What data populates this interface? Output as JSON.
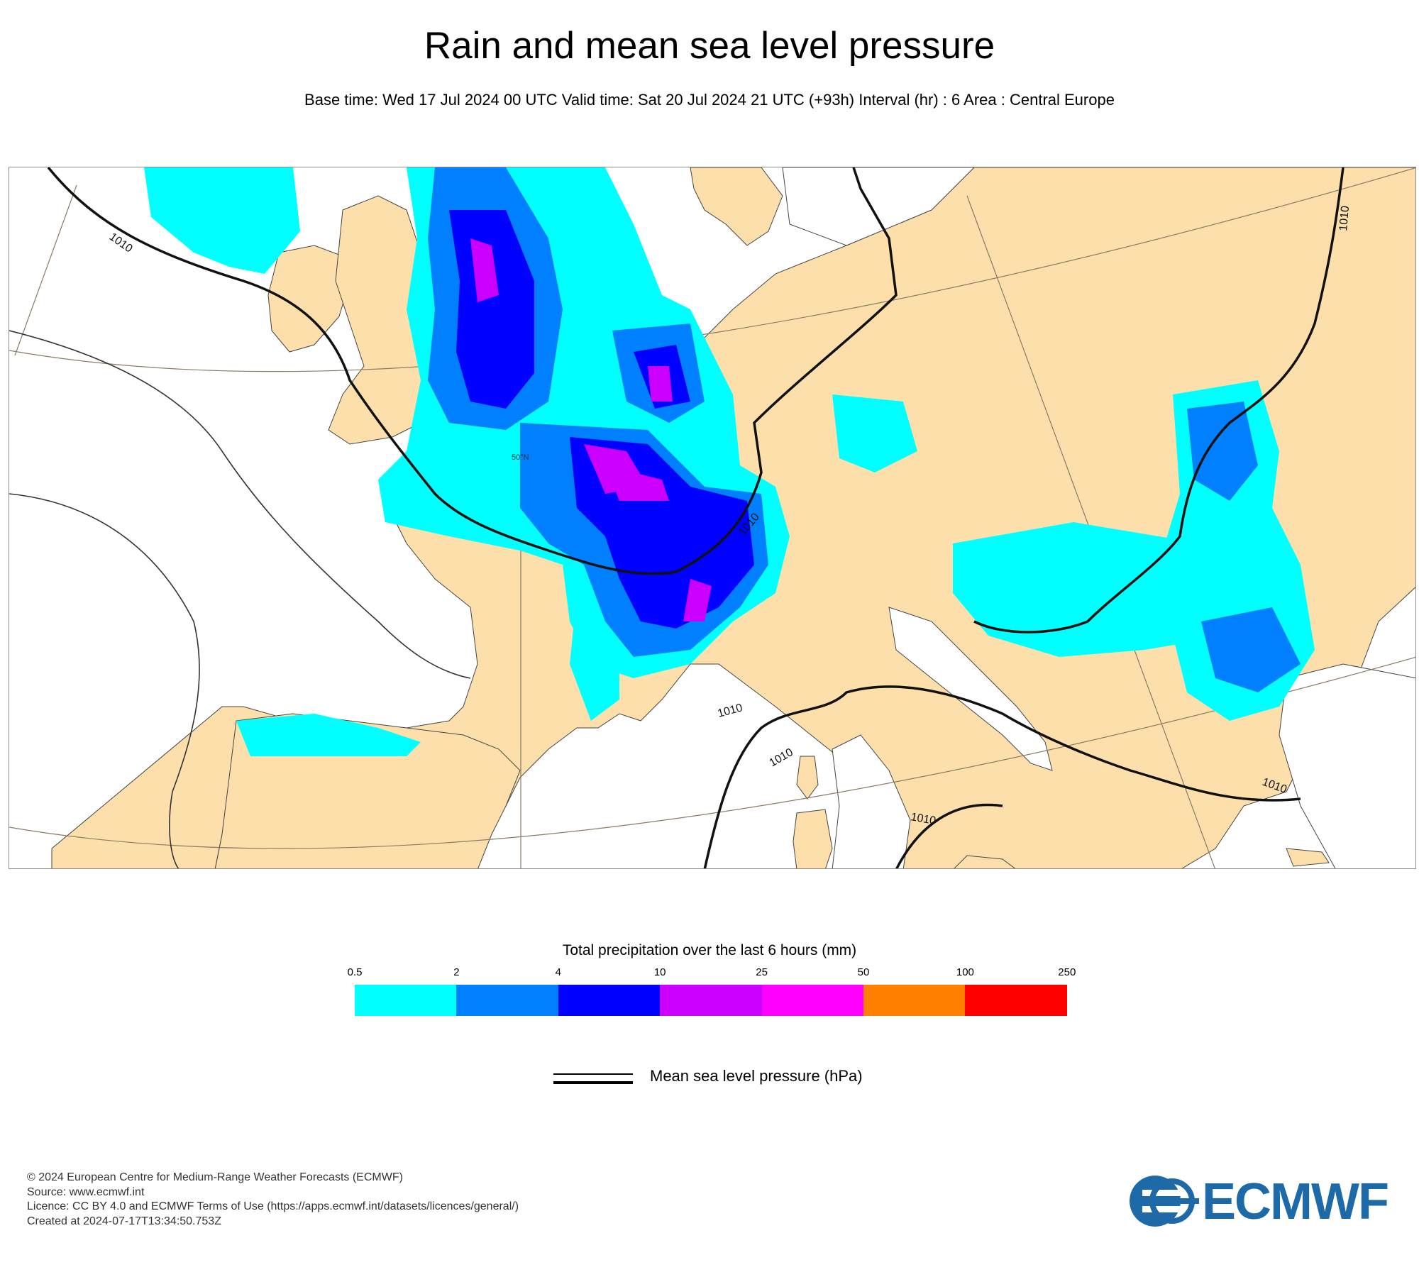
{
  "header": {
    "title": "Rain and mean sea level pressure",
    "subtitle": "Base time: Wed 17 Jul 2024 00 UTC Valid time: Sat 20 Jul 2024 21 UTC (+93h) Interval (hr) : 6 Area : Central Europe"
  },
  "map": {
    "land_color": "#fddfab",
    "sea_color": "#ffffff",
    "isobar_label": "1010",
    "latitude_label": "50°N"
  },
  "legend": {
    "title": "Total precipitation over the last 6 hours (mm)",
    "thresholds": [
      "0.5",
      "2",
      "4",
      "10",
      "25",
      "50",
      "100",
      "250"
    ],
    "colors": [
      "#00ffff",
      "#0080ff",
      "#0000ff",
      "#cc00ff",
      "#ff00ff",
      "#ff8000",
      "#ff0000"
    ]
  },
  "pressure_legend": {
    "label": "Mean sea level pressure (hPa)"
  },
  "footer": {
    "copyright": "© 2024 European Centre for Medium-Range Weather Forecasts (ECMWF)",
    "source": "Source: www.ecmwf.int",
    "licence": "Licence: CC BY 4.0 and ECMWF Terms of Use (https://apps.ecmwf.int/datasets/licences/general/)",
    "created": "Created at 2024-07-17T13:34:50.753Z"
  },
  "logo": {
    "text": "ECMWF",
    "color": "#1e6aa8"
  }
}
